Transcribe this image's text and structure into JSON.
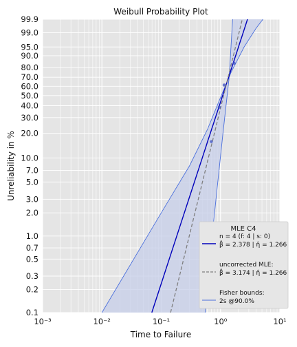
{
  "chart_data": {
    "type": "line",
    "title": "Weibull Probability Plot",
    "xlabel": "Time to Failure",
    "ylabel": "Unreliability in %",
    "x_scale": "log",
    "y_scale": "weibull",
    "xlim": [
      0.001,
      10
    ],
    "ylim": [
      0.1,
      99.9
    ],
    "x_ticks": [
      {
        "value": 0.001,
        "label": "10⁻³"
      },
      {
        "value": 0.01,
        "label": "10⁻²"
      },
      {
        "value": 0.1,
        "label": "10⁻¹"
      },
      {
        "value": 1,
        "label": "10⁰"
      },
      {
        "value": 10,
        "label": "10¹"
      }
    ],
    "y_ticks": [
      {
        "value": 0.1,
        "label": "0.1"
      },
      {
        "value": 0.2,
        "label": "0.2"
      },
      {
        "value": 0.3,
        "label": "0.3"
      },
      {
        "value": 0.5,
        "label": "0.5"
      },
      {
        "value": 0.7,
        "label": "0.7"
      },
      {
        "value": 1.0,
        "label": "1.0"
      },
      {
        "value": 2.0,
        "label": "2.0"
      },
      {
        "value": 3.0,
        "label": "3.0"
      },
      {
        "value": 5.0,
        "label": "5.0"
      },
      {
        "value": 7.0,
        "label": "7.0"
      },
      {
        "value": 10.0,
        "label": "10.0"
      },
      {
        "value": 20.0,
        "label": "20.0"
      },
      {
        "value": 30.0,
        "label": "30.0"
      },
      {
        "value": 40.0,
        "label": "40.0"
      },
      {
        "value": 50.0,
        "label": "50.0"
      },
      {
        "value": 60.0,
        "label": "60.0"
      },
      {
        "value": 70.0,
        "label": "70.0"
      },
      {
        "value": 80.0,
        "label": "80.0"
      },
      {
        "value": 90.0,
        "label": "90.0"
      },
      {
        "value": 95.0,
        "label": "95.0"
      },
      {
        "value": 99.0,
        "label": "99.0"
      },
      {
        "value": 99.9,
        "label": "99.9"
      }
    ],
    "grid": true,
    "legend_position": "bottom-right",
    "legend_title": "MLE C4",
    "data_points": {
      "x": [
        0.7,
        0.95,
        1.15,
        1.7
      ],
      "y": [
        15.9,
        38.6,
        61.4,
        84.1
      ]
    },
    "series": [
      {
        "kind": "fit",
        "label_lines": [
          "n = 4 (f: 4 | s: 0)",
          "β̂ = 2.378 | η̂ = 1.266"
        ],
        "beta": 2.378,
        "eta": 1.266,
        "color": "#0000bb",
        "style": "solid"
      },
      {
        "kind": "uncorrected",
        "label_lines": [
          "uncorrected MLE:",
          "β̂ = 3.174 | η̂ = 1.266"
        ],
        "beta": 3.174,
        "eta": 1.266,
        "color": "#7f7f7f",
        "style": "dashed"
      },
      {
        "kind": "bounds",
        "label_lines": [
          "Fisher bounds:",
          "2s @90.0%"
        ],
        "upper": {
          "x": [
            0.01,
            0.1,
            0.3,
            0.6,
            1.0,
            1.5,
            2.5,
            4.0,
            5.2
          ],
          "y": [
            0.1,
            2.0,
            8.0,
            22.0,
            48.0,
            75.0,
            95.0,
            99.5,
            99.9
          ]
        },
        "lower": {
          "x": [
            0.55,
            0.7,
            0.9,
            1.1,
            1.4,
            1.6
          ],
          "y": [
            0.1,
            0.8,
            5.0,
            20.0,
            70.0,
            99.9
          ]
        },
        "color": "#4a6fdc",
        "fill": "#c5cde8"
      }
    ]
  }
}
